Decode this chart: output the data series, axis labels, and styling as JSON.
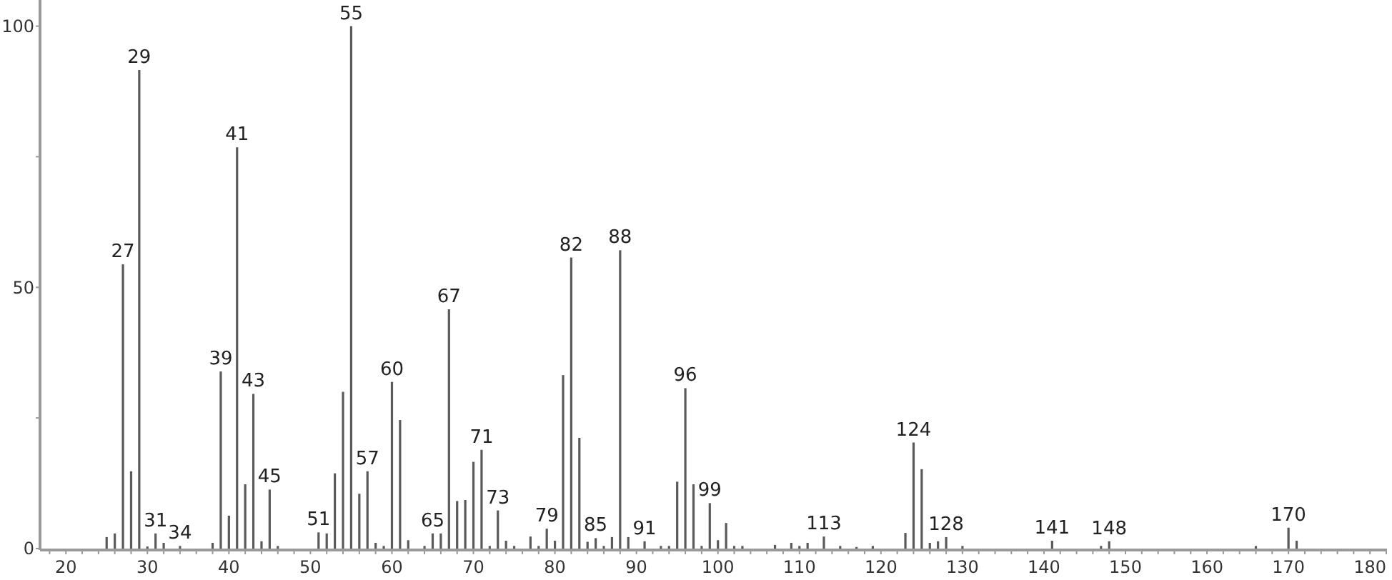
{
  "chart_data": {
    "type": "bar",
    "color": "#5a5a5a",
    "x": [
      25,
      26,
      27,
      28,
      29,
      30,
      31,
      32,
      34,
      38,
      39,
      40,
      41,
      42,
      43,
      44,
      45,
      46,
      51,
      52,
      53,
      54,
      55,
      56,
      57,
      58,
      59,
      60,
      61,
      62,
      64,
      65,
      66,
      67,
      68,
      69,
      70,
      71,
      72,
      73,
      74,
      75,
      77,
      78,
      79,
      80,
      81,
      82,
      83,
      84,
      85,
      86,
      87,
      88,
      89,
      91,
      93,
      94,
      95,
      96,
      97,
      98,
      99,
      100,
      101,
      102,
      103,
      107,
      109,
      110,
      111,
      113,
      115,
      117,
      119,
      123,
      124,
      125,
      126,
      127,
      128,
      130,
      141,
      147,
      148,
      166,
      170,
      171
    ],
    "values": [
      2.2,
      2.9,
      54.4,
      14.8,
      91.6,
      0.4,
      2.9,
      1.1,
      0.5,
      1.1,
      33.9,
      6.3,
      76.8,
      12.3,
      29.6,
      1.4,
      11.3,
      0.5,
      3.1,
      2.9,
      14.4,
      30.0,
      100,
      10.5,
      14.8,
      1.1,
      0.5,
      31.9,
      24.6,
      1.6,
      0.5,
      2.9,
      2.9,
      45.8,
      9.1,
      9.3,
      16.6,
      18.9,
      0.5,
      7.3,
      1.5,
      0.5,
      2.3,
      0.5,
      3.8,
      1.5,
      33.2,
      55.7,
      21.2,
      1.3,
      2.0,
      0.5,
      2.2,
      57.1,
      2.2,
      1.4,
      0.5,
      0.5,
      12.8,
      30.7,
      12.3,
      0.5,
      8.7,
      1.6,
      4.9,
      0.5,
      0.5,
      0.7,
      1.1,
      0.5,
      1.1,
      2.3,
      0.5,
      0.3,
      0.5,
      3.0,
      20.3,
      15.2,
      1.1,
      1.4,
      2.2,
      0.5,
      1.5,
      0.5,
      1.4,
      0.5,
      4.0,
      1.5
    ],
    "annotations": [
      {
        "text": "27",
        "x": 27,
        "y": 54.4
      },
      {
        "text": "29",
        "x": 29,
        "y": 91.6
      },
      {
        "text": "31",
        "x": 31,
        "y": 2.9
      },
      {
        "text": "34",
        "x": 34,
        "y": 0.5
      },
      {
        "text": "39",
        "x": 39,
        "y": 33.9
      },
      {
        "text": "41",
        "x": 41,
        "y": 76.8
      },
      {
        "text": "43",
        "x": 43,
        "y": 29.6
      },
      {
        "text": "45",
        "x": 45,
        "y": 11.3
      },
      {
        "text": "51",
        "x": 51,
        "y": 3.1
      },
      {
        "text": "55",
        "x": 55,
        "y": 100
      },
      {
        "text": "57",
        "x": 57,
        "y": 14.8
      },
      {
        "text": "60",
        "x": 60,
        "y": 31.9
      },
      {
        "text": "65",
        "x": 65,
        "y": 2.9
      },
      {
        "text": "67",
        "x": 67,
        "y": 45.8
      },
      {
        "text": "71",
        "x": 71,
        "y": 18.9
      },
      {
        "text": "73",
        "x": 73,
        "y": 7.3
      },
      {
        "text": "79",
        "x": 79,
        "y": 3.8
      },
      {
        "text": "82",
        "x": 82,
        "y": 55.7
      },
      {
        "text": "85",
        "x": 85,
        "y": 2.0
      },
      {
        "text": "88",
        "x": 88,
        "y": 57.1
      },
      {
        "text": "91",
        "x": 91,
        "y": 1.4
      },
      {
        "text": "96",
        "x": 96,
        "y": 30.7
      },
      {
        "text": "99",
        "x": 99,
        "y": 8.7
      },
      {
        "text": "113",
        "x": 113,
        "y": 2.3
      },
      {
        "text": "124",
        "x": 124,
        "y": 20.3
      },
      {
        "text": "128",
        "x": 128,
        "y": 2.2
      },
      {
        "text": "141",
        "x": 141,
        "y": 1.5
      },
      {
        "text": "148",
        "x": 148,
        "y": 1.4
      },
      {
        "text": "170",
        "x": 170,
        "y": 4.0
      }
    ],
    "xlim": [
      17,
      182
    ],
    "xticks": [
      {
        "value": 18,
        "label": null
      },
      20,
      {
        "value": 22,
        "label": null
      },
      {
        "value": 24,
        "label": null
      },
      {
        "value": 26,
        "label": null
      },
      {
        "value": 28,
        "label": null
      },
      30,
      {
        "value": 32,
        "label": null
      },
      {
        "value": 34,
        "label": null
      },
      {
        "value": 36,
        "label": null
      },
      {
        "value": 38,
        "label": null
      },
      40,
      {
        "value": 42,
        "label": null
      },
      {
        "value": 44,
        "label": null
      },
      {
        "value": 46,
        "label": null
      },
      {
        "value": 48,
        "label": null
      },
      50,
      {
        "value": 52,
        "label": null
      },
      {
        "value": 54,
        "label": null
      },
      {
        "value": 56,
        "label": null
      },
      {
        "value": 58,
        "label": null
      },
      60,
      {
        "value": 62,
        "label": null
      },
      {
        "value": 64,
        "label": null
      },
      {
        "value": 66,
        "label": null
      },
      {
        "value": 68,
        "label": null
      },
      70,
      {
        "value": 72,
        "label": null
      },
      {
        "value": 74,
        "label": null
      },
      {
        "value": 76,
        "label": null
      },
      {
        "value": 78,
        "label": null
      },
      80,
      {
        "value": 82,
        "label": null
      },
      {
        "value": 84,
        "label": null
      },
      {
        "value": 86,
        "label": null
      },
      {
        "value": 88,
        "label": null
      },
      90,
      {
        "value": 92,
        "label": null
      },
      {
        "value": 94,
        "label": null
      },
      {
        "value": 96,
        "label": null
      },
      {
        "value": 98,
        "label": null
      },
      100,
      {
        "value": 102,
        "label": null
      },
      {
        "value": 104,
        "label": null
      },
      {
        "value": 106,
        "label": null
      },
      {
        "value": 108,
        "label": null
      },
      110,
      {
        "value": 112,
        "label": null
      },
      {
        "value": 114,
        "label": null
      },
      {
        "value": 116,
        "label": null
      },
      {
        "value": 118,
        "label": null
      },
      120,
      {
        "value": 122,
        "label": null
      },
      {
        "value": 124,
        "label": null
      },
      {
        "value": 126,
        "label": null
      },
      {
        "value": 128,
        "label": null
      },
      130,
      {
        "value": 132,
        "label": null
      },
      {
        "value": 134,
        "label": null
      },
      {
        "value": 136,
        "label": null
      },
      {
        "value": 138,
        "label": null
      },
      140,
      {
        "value": 142,
        "label": null
      },
      {
        "value": 144,
        "label": null
      },
      {
        "value": 146,
        "label": null
      },
      {
        "value": 148,
        "label": null
      },
      150,
      {
        "value": 152,
        "label": null
      },
      {
        "value": 154,
        "label": null
      },
      {
        "value": 156,
        "label": null
      },
      {
        "value": 158,
        "label": null
      },
      160,
      {
        "value": 162,
        "label": null
      },
      {
        "value": 164,
        "label": null
      },
      {
        "value": 166,
        "label": null
      },
      {
        "value": 168,
        "label": null
      },
      170,
      {
        "value": 172,
        "label": null
      },
      {
        "value": 174,
        "label": null
      },
      {
        "value": 176,
        "label": null
      },
      {
        "value": 178,
        "label": null
      },
      180,
      {
        "value": 182,
        "label": null
      }
    ],
    "ylim": [
      0,
      105
    ],
    "yticks": [
      0,
      {
        "value": 25,
        "label": null
      },
      50,
      {
        "value": 75,
        "label": null
      },
      100
    ],
    "grid": false
  }
}
